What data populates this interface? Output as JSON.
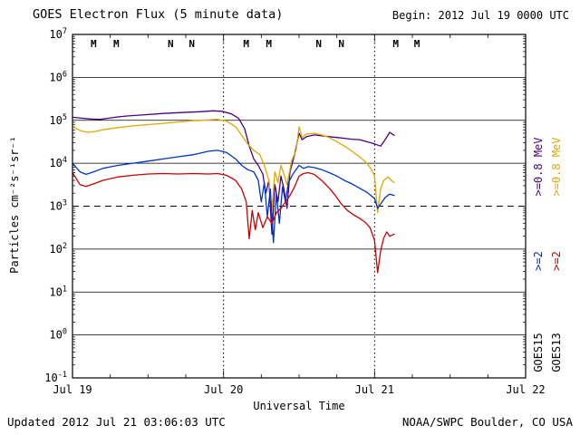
{
  "header": {
    "title": "GOES Electron Flux (5 minute data)",
    "begin": "Begin: 2012 Jul 19 0000 UTC"
  },
  "footer": {
    "updated": "Updated 2012 Jul 21 03:06:03 UTC",
    "credit": "NOAA/SWPC Boulder, CO USA"
  },
  "axes": {
    "y_label": "Particles cm⁻²s⁻¹sr⁻¹",
    "x_label": "Universal Time"
  },
  "legend": {
    "goes15": {
      "name": "GOES15",
      "e2": ">=2",
      "e08": ">=0.8 MeV",
      "name_color": "#000000",
      "e2_color": "#0033cc",
      "e08_color": "#4b0082"
    },
    "goes13": {
      "name": "GOES13",
      "e2": ">=2",
      "e08": ">=0.8 MeV",
      "name_color": "#000000",
      "e2_color": "#cc0000",
      "e08_color": "#e0a800"
    }
  },
  "chart_data": {
    "type": "line",
    "title": "GOES Electron Flux (5 minute data)",
    "xlabel": "Universal Time",
    "ylabel": "Particles cm⁻²s⁻¹sr⁻¹",
    "x_ticks": [
      "Jul 19",
      "Jul 20",
      "Jul 21",
      "Jul 22"
    ],
    "x_unit": "days since 2012 Jul 19 0000 UTC",
    "xlim_days": [
      0,
      3
    ],
    "y_scale": "log10",
    "y_exponents": [
      7,
      6,
      5,
      4,
      3,
      2,
      1,
      0,
      -1
    ],
    "ylim_log": [
      -1,
      7
    ],
    "threshold_log": 3,
    "grid": "horizontal solid per decade; dashed alert line at 10^3; dotted vertical lines at day boundaries",
    "legend_position": "right margin, rotated",
    "top_markers": [
      {
        "t": 0.14,
        "label": "M",
        "color": "#cc0000"
      },
      {
        "t": 0.29,
        "label": "M",
        "color": "#000099"
      },
      {
        "t": 0.65,
        "label": "N",
        "color": "#cc0000"
      },
      {
        "t": 0.79,
        "label": "N",
        "color": "#000099"
      },
      {
        "t": 1.15,
        "label": "M",
        "color": "#cc0000"
      },
      {
        "t": 1.3,
        "label": "M",
        "color": "#000099"
      },
      {
        "t": 1.63,
        "label": "N",
        "color": "#cc0000"
      },
      {
        "t": 1.78,
        "label": "N",
        "color": "#000099"
      },
      {
        "t": 2.14,
        "label": "M",
        "color": "#cc0000"
      },
      {
        "t": 2.28,
        "label": "M",
        "color": "#000099"
      }
    ],
    "series": [
      {
        "name": "GOES15 >=0.8 MeV",
        "color": "#4b0082",
        "points_t_log10": [
          [
            0.0,
            5.07
          ],
          [
            0.06,
            5.05
          ],
          [
            0.12,
            5.03
          ],
          [
            0.18,
            5.02
          ],
          [
            0.24,
            5.05
          ],
          [
            0.3,
            5.08
          ],
          [
            0.36,
            5.1
          ],
          [
            0.48,
            5.13
          ],
          [
            0.6,
            5.16
          ],
          [
            0.72,
            5.18
          ],
          [
            0.84,
            5.2
          ],
          [
            0.93,
            5.22
          ],
          [
            0.99,
            5.21
          ],
          [
            1.05,
            5.15
          ],
          [
            1.1,
            5.05
          ],
          [
            1.14,
            4.8
          ],
          [
            1.17,
            4.4
          ],
          [
            1.2,
            4.1
          ],
          [
            1.23,
            3.95
          ],
          [
            1.26,
            3.75
          ],
          [
            1.28,
            3.3
          ],
          [
            1.3,
            3.6
          ],
          [
            1.32,
            2.35
          ],
          [
            1.34,
            3.5
          ],
          [
            1.36,
            3.1
          ],
          [
            1.38,
            3.7
          ],
          [
            1.4,
            3.4
          ],
          [
            1.42,
            2.95
          ],
          [
            1.44,
            3.8
          ],
          [
            1.47,
            4.2
          ],
          [
            1.5,
            4.7
          ],
          [
            1.52,
            4.55
          ],
          [
            1.55,
            4.62
          ],
          [
            1.6,
            4.66
          ],
          [
            1.65,
            4.64
          ],
          [
            1.7,
            4.62
          ],
          [
            1.75,
            4.6
          ],
          [
            1.8,
            4.58
          ],
          [
            1.85,
            4.56
          ],
          [
            1.9,
            4.55
          ],
          [
            1.95,
            4.5
          ],
          [
            2.0,
            4.45
          ],
          [
            2.04,
            4.4
          ],
          [
            2.07,
            4.55
          ],
          [
            2.1,
            4.72
          ],
          [
            2.13,
            4.65
          ]
        ]
      },
      {
        "name": "GOES13 >=0.8 MeV",
        "color": "#e0a800",
        "points_t_log10": [
          [
            0.0,
            4.86
          ],
          [
            0.05,
            4.76
          ],
          [
            0.1,
            4.72
          ],
          [
            0.15,
            4.74
          ],
          [
            0.2,
            4.78
          ],
          [
            0.3,
            4.83
          ],
          [
            0.4,
            4.87
          ],
          [
            0.5,
            4.9
          ],
          [
            0.6,
            4.93
          ],
          [
            0.7,
            4.96
          ],
          [
            0.8,
            4.99
          ],
          [
            0.9,
            5.01
          ],
          [
            0.96,
            5.02
          ],
          [
            1.02,
            4.98
          ],
          [
            1.08,
            4.85
          ],
          [
            1.12,
            4.65
          ],
          [
            1.16,
            4.45
          ],
          [
            1.2,
            4.3
          ],
          [
            1.24,
            4.2
          ],
          [
            1.27,
            3.95
          ],
          [
            1.3,
            3.6
          ],
          [
            1.32,
            2.9
          ],
          [
            1.34,
            3.8
          ],
          [
            1.36,
            3.55
          ],
          [
            1.38,
            3.95
          ],
          [
            1.4,
            3.75
          ],
          [
            1.42,
            3.5
          ],
          [
            1.45,
            4.05
          ],
          [
            1.48,
            4.3
          ],
          [
            1.5,
            4.85
          ],
          [
            1.52,
            4.6
          ],
          [
            1.55,
            4.68
          ],
          [
            1.6,
            4.7
          ],
          [
            1.65,
            4.66
          ],
          [
            1.7,
            4.6
          ],
          [
            1.75,
            4.5
          ],
          [
            1.8,
            4.4
          ],
          [
            1.85,
            4.28
          ],
          [
            1.9,
            4.15
          ],
          [
            1.95,
            4.0
          ],
          [
            1.98,
            3.85
          ],
          [
            2.0,
            3.7
          ],
          [
            2.02,
            2.85
          ],
          [
            2.04,
            3.4
          ],
          [
            2.06,
            3.6
          ],
          [
            2.09,
            3.68
          ],
          [
            2.11,
            3.6
          ],
          [
            2.13,
            3.55
          ]
        ]
      },
      {
        "name": "GOES15 >=2 MeV",
        "color": "#0033cc",
        "points_t_log10": [
          [
            0.0,
            4.0
          ],
          [
            0.05,
            3.8
          ],
          [
            0.09,
            3.74
          ],
          [
            0.14,
            3.8
          ],
          [
            0.2,
            3.88
          ],
          [
            0.3,
            3.95
          ],
          [
            0.4,
            4.0
          ],
          [
            0.5,
            4.05
          ],
          [
            0.6,
            4.1
          ],
          [
            0.7,
            4.15
          ],
          [
            0.8,
            4.2
          ],
          [
            0.9,
            4.28
          ],
          [
            0.96,
            4.3
          ],
          [
            1.02,
            4.25
          ],
          [
            1.08,
            4.1
          ],
          [
            1.12,
            3.95
          ],
          [
            1.16,
            3.85
          ],
          [
            1.2,
            3.8
          ],
          [
            1.23,
            3.6
          ],
          [
            1.25,
            3.1
          ],
          [
            1.27,
            3.55
          ],
          [
            1.29,
            2.75
          ],
          [
            1.31,
            3.4
          ],
          [
            1.33,
            2.15
          ],
          [
            1.35,
            3.3
          ],
          [
            1.37,
            2.6
          ],
          [
            1.39,
            3.45
          ],
          [
            1.41,
            3.1
          ],
          [
            1.43,
            3.55
          ],
          [
            1.46,
            3.75
          ],
          [
            1.5,
            3.95
          ],
          [
            1.53,
            3.88
          ],
          [
            1.56,
            3.92
          ],
          [
            1.6,
            3.9
          ],
          [
            1.65,
            3.85
          ],
          [
            1.7,
            3.78
          ],
          [
            1.75,
            3.7
          ],
          [
            1.8,
            3.6
          ],
          [
            1.85,
            3.52
          ],
          [
            1.9,
            3.42
          ],
          [
            1.95,
            3.32
          ],
          [
            2.0,
            3.18
          ],
          [
            2.02,
            2.95
          ],
          [
            2.04,
            3.05
          ],
          [
            2.07,
            3.2
          ],
          [
            2.1,
            3.28
          ],
          [
            2.13,
            3.25
          ]
        ]
      },
      {
        "name": "GOES13 >=2 MeV",
        "color": "#cc0000",
        "points_t_log10": [
          [
            0.0,
            3.78
          ],
          [
            0.05,
            3.5
          ],
          [
            0.09,
            3.46
          ],
          [
            0.14,
            3.52
          ],
          [
            0.2,
            3.6
          ],
          [
            0.3,
            3.68
          ],
          [
            0.4,
            3.72
          ],
          [
            0.5,
            3.75
          ],
          [
            0.6,
            3.76
          ],
          [
            0.7,
            3.75
          ],
          [
            0.8,
            3.76
          ],
          [
            0.9,
            3.75
          ],
          [
            0.96,
            3.76
          ],
          [
            1.02,
            3.72
          ],
          [
            1.08,
            3.6
          ],
          [
            1.12,
            3.4
          ],
          [
            1.15,
            3.1
          ],
          [
            1.17,
            2.24
          ],
          [
            1.19,
            2.9
          ],
          [
            1.21,
            2.45
          ],
          [
            1.23,
            2.85
          ],
          [
            1.26,
            2.5
          ],
          [
            1.29,
            2.75
          ],
          [
            1.32,
            2.6
          ],
          [
            1.35,
            2.85
          ],
          [
            1.38,
            2.95
          ],
          [
            1.41,
            3.1
          ],
          [
            1.44,
            3.25
          ],
          [
            1.47,
            3.45
          ],
          [
            1.5,
            3.7
          ],
          [
            1.53,
            3.76
          ],
          [
            1.56,
            3.78
          ],
          [
            1.6,
            3.74
          ],
          [
            1.65,
            3.6
          ],
          [
            1.7,
            3.42
          ],
          [
            1.74,
            3.25
          ],
          [
            1.78,
            3.05
          ],
          [
            1.82,
            2.9
          ],
          [
            1.86,
            2.8
          ],
          [
            1.9,
            2.72
          ],
          [
            1.94,
            2.62
          ],
          [
            1.97,
            2.5
          ],
          [
            2.0,
            2.2
          ],
          [
            2.02,
            1.45
          ],
          [
            2.04,
            1.95
          ],
          [
            2.06,
            2.25
          ],
          [
            2.08,
            2.4
          ],
          [
            2.1,
            2.3
          ],
          [
            2.13,
            2.35
          ]
        ]
      }
    ]
  }
}
